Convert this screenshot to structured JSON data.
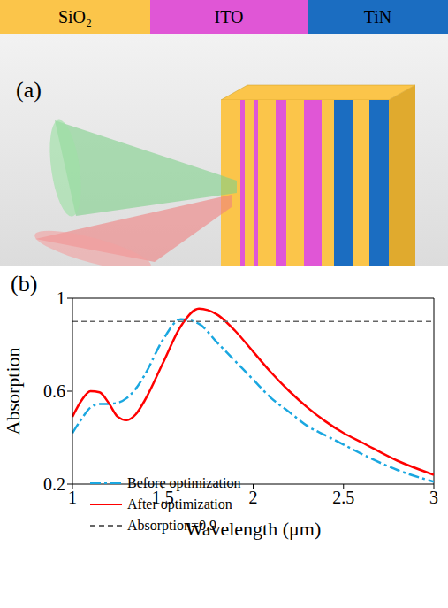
{
  "materials": [
    {
      "label": "SiO₂",
      "color": "#fbc54a"
    },
    {
      "label": "ITO",
      "color": "#e056d6"
    },
    {
      "label": "TiN",
      "color": "#1b6dc1"
    }
  ],
  "panel_a": {
    "label": "(a)"
  },
  "panel_b": {
    "label": "(b)"
  },
  "chart_data": {
    "type": "line",
    "x_label": "Wavelength (μm)",
    "y_label": "Absorption",
    "x": [
      1,
      1.05,
      1.1,
      1.15,
      1.2,
      1.25,
      1.3,
      1.35,
      1.4,
      1.5,
      1.6,
      1.7,
      1.8,
      1.9,
      2,
      2.1,
      2.2,
      2.3,
      2.4,
      2.5,
      2.6,
      2.8,
      3
    ],
    "series": [
      {
        "name": "Before optimization",
        "color": "#1aa7e0",
        "line_style": "dashdot",
        "values": [
          0.42,
          0.48,
          0.53,
          0.545,
          0.545,
          0.55,
          0.57,
          0.61,
          0.67,
          0.82,
          0.91,
          0.89,
          0.81,
          0.73,
          0.65,
          0.57,
          0.51,
          0.45,
          0.41,
          0.37,
          0.33,
          0.26,
          0.21
        ]
      },
      {
        "name": "After optimization",
        "color": "#ff0000",
        "line_style": "solid",
        "values": [
          0.49,
          0.56,
          0.6,
          0.595,
          0.55,
          0.49,
          0.475,
          0.5,
          0.56,
          0.72,
          0.88,
          0.955,
          0.93,
          0.86,
          0.77,
          0.68,
          0.6,
          0.53,
          0.47,
          0.42,
          0.38,
          0.3,
          0.24
        ]
      },
      {
        "name": "Absorption=0.9",
        "color": "#666666",
        "line_style": "dashed",
        "values": [
          0.9,
          0.9,
          0.9,
          0.9,
          0.9,
          0.9,
          0.9,
          0.9,
          0.9,
          0.9,
          0.9,
          0.9,
          0.9,
          0.9,
          0.9,
          0.9,
          0.9,
          0.9,
          0.9,
          0.9,
          0.9,
          0.9,
          0.9
        ]
      }
    ],
    "xlim": [
      1,
      3
    ],
    "xticks": [
      1,
      1.5,
      2,
      2.5,
      3
    ],
    "ylim": [
      0.2,
      1
    ],
    "yticks": [
      0.2,
      0.6,
      1
    ],
    "grid": false,
    "legend": "lower left"
  }
}
